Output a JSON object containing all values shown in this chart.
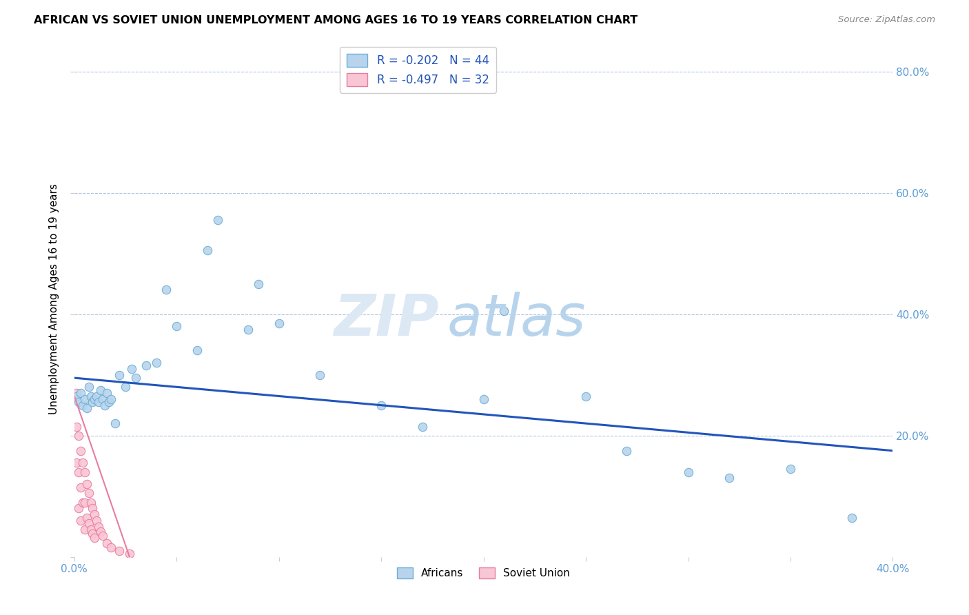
{
  "title": "AFRICAN VS SOVIET UNION UNEMPLOYMENT AMONG AGES 16 TO 19 YEARS CORRELATION CHART",
  "source": "Source: ZipAtlas.com",
  "ylabel": "Unemployment Among Ages 16 to 19 years",
  "xlim": [
    0.0,
    0.4
  ],
  "ylim": [
    0.0,
    0.85
  ],
  "background_color": "#ffffff",
  "grid_color": "#b0c4de",
  "watermark_zip": "ZIP",
  "watermark_atlas": "atlas",
  "africans_color": "#b8d4ed",
  "soviet_color": "#f9c6d4",
  "africans_edge_color": "#6baed6",
  "soviet_edge_color": "#e87ca0",
  "trend_line_color": "#2255bb",
  "soviet_trend_color": "#e87ca0",
  "R_africans": -0.202,
  "N_africans": 44,
  "R_soviet": -0.497,
  "N_soviet": 32,
  "legend_africans_label": "Africans",
  "legend_soviet_label": "Soviet Union",
  "marker_size": 80,
  "africans_x": [
    0.001,
    0.002,
    0.003,
    0.004,
    0.005,
    0.006,
    0.007,
    0.008,
    0.009,
    0.01,
    0.011,
    0.012,
    0.013,
    0.014,
    0.015,
    0.016,
    0.017,
    0.018,
    0.02,
    0.022,
    0.025,
    0.028,
    0.03,
    0.035,
    0.04,
    0.045,
    0.05,
    0.06,
    0.065,
    0.07,
    0.085,
    0.09,
    0.1,
    0.12,
    0.15,
    0.17,
    0.2,
    0.21,
    0.25,
    0.27,
    0.3,
    0.32,
    0.35,
    0.38
  ],
  "africans_y": [
    0.265,
    0.255,
    0.27,
    0.25,
    0.26,
    0.245,
    0.28,
    0.265,
    0.255,
    0.26,
    0.265,
    0.255,
    0.275,
    0.26,
    0.25,
    0.27,
    0.255,
    0.26,
    0.22,
    0.3,
    0.28,
    0.31,
    0.295,
    0.315,
    0.32,
    0.44,
    0.38,
    0.34,
    0.505,
    0.555,
    0.375,
    0.45,
    0.385,
    0.3,
    0.25,
    0.215,
    0.26,
    0.405,
    0.265,
    0.175,
    0.14,
    0.13,
    0.145,
    0.065
  ],
  "soviet_x": [
    0.001,
    0.001,
    0.001,
    0.002,
    0.002,
    0.002,
    0.003,
    0.003,
    0.003,
    0.004,
    0.004,
    0.005,
    0.005,
    0.005,
    0.006,
    0.006,
    0.007,
    0.007,
    0.008,
    0.008,
    0.009,
    0.009,
    0.01,
    0.01,
    0.011,
    0.012,
    0.013,
    0.014,
    0.016,
    0.018,
    0.022,
    0.027
  ],
  "soviet_y": [
    0.27,
    0.215,
    0.155,
    0.2,
    0.14,
    0.08,
    0.175,
    0.115,
    0.06,
    0.155,
    0.09,
    0.14,
    0.09,
    0.045,
    0.12,
    0.065,
    0.105,
    0.055,
    0.09,
    0.045,
    0.08,
    0.038,
    0.07,
    0.032,
    0.06,
    0.05,
    0.042,
    0.035,
    0.022,
    0.016,
    0.01,
    0.005
  ],
  "trend_africans_x0": 0.0,
  "trend_africans_y0": 0.295,
  "trend_africans_x1": 0.4,
  "trend_africans_y1": 0.175,
  "trend_soviet_x0": 0.0,
  "trend_soviet_y0": 0.265,
  "trend_soviet_x1": 0.027,
  "trend_soviet_y1": 0.0
}
